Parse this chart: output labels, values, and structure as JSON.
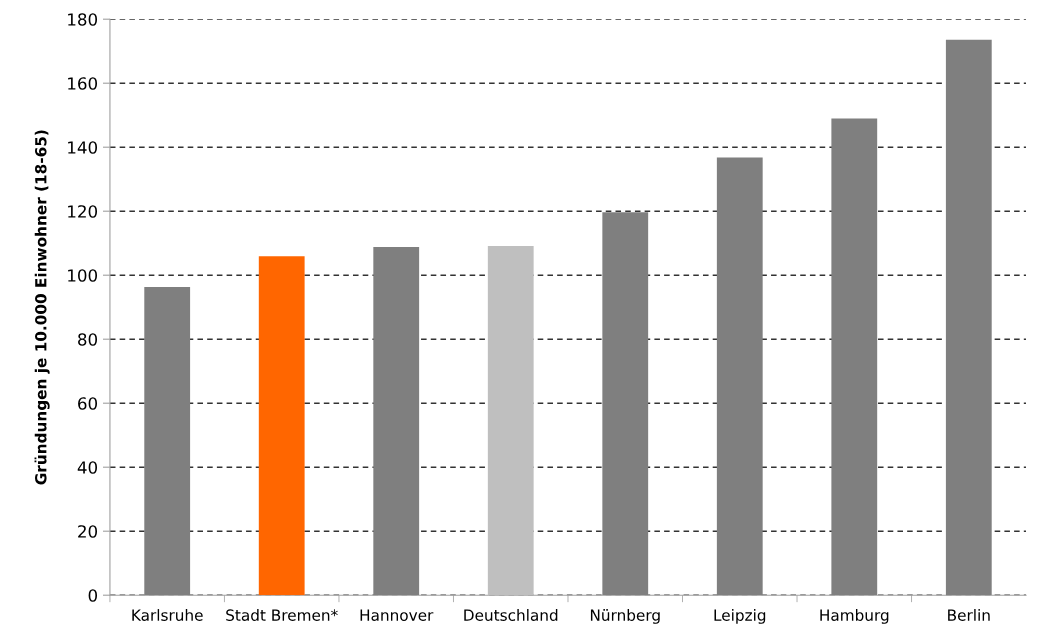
{
  "chart_data": {
    "type": "bar",
    "ylabel": "Gründungen je 10.000 Einwohner (18-65)",
    "categories": [
      "Karlsruhe",
      "Stadt Bremen*",
      "Hannover",
      "Deutschland",
      "Nürnberg",
      "Leipzig",
      "Hamburg",
      "Berlin"
    ],
    "values": [
      96.3,
      105.9,
      108.8,
      109.1,
      119.7,
      136.8,
      149.0,
      173.6
    ],
    "colors": [
      "#7f7f7f",
      "#ff6600",
      "#7f7f7f",
      "#bfbfbf",
      "#7f7f7f",
      "#7f7f7f",
      "#7f7f7f",
      "#7f7f7f"
    ],
    "ylim": [
      0,
      180
    ],
    "yticks": [
      0,
      20,
      40,
      60,
      80,
      100,
      120,
      140,
      160,
      180
    ],
    "grid": "y",
    "line_style": "dashed"
  }
}
